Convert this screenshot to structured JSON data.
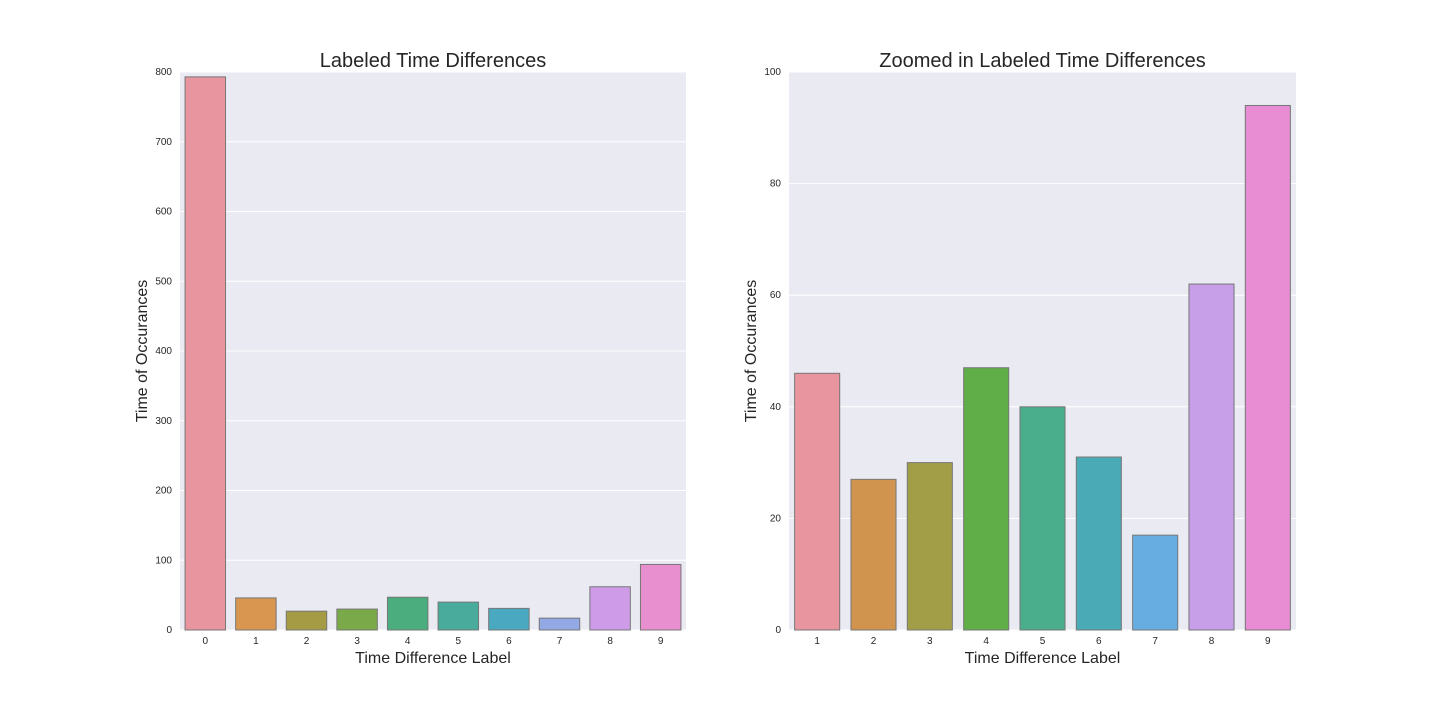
{
  "chart_data": [
    {
      "type": "bar",
      "title": "Labeled Time Differences",
      "xlabel": "Time Difference Label",
      "ylabel": "Time of Occurances",
      "categories": [
        "0",
        "1",
        "2",
        "3",
        "4",
        "5",
        "6",
        "7",
        "8",
        "9"
      ],
      "values": [
        793,
        46,
        27,
        30,
        47,
        40,
        31,
        17,
        62,
        94
      ],
      "colors": [
        "#e8959f",
        "#d89650",
        "#a69b45",
        "#7aa94a",
        "#4bac7e",
        "#48ab9b",
        "#4aa8c0",
        "#92a9e6",
        "#cd9be8",
        "#e890cf"
      ],
      "ylim": [
        0,
        800
      ],
      "yticks": [
        0,
        100,
        200,
        300,
        400,
        500,
        600,
        700,
        800
      ],
      "grid": true
    },
    {
      "type": "bar",
      "title": "Zoomed in Labeled Time Differences",
      "xlabel": "Time Difference Label",
      "ylabel": "Time of Occurances",
      "categories": [
        "1",
        "2",
        "3",
        "4",
        "5",
        "6",
        "7",
        "8",
        "9"
      ],
      "values": [
        46,
        27,
        30,
        47,
        40,
        31,
        17,
        62,
        94
      ],
      "colors": [
        "#e8959f",
        "#d0944e",
        "#a29e47",
        "#5fae48",
        "#4aad8c",
        "#4aaab6",
        "#68ade2",
        "#c69fe8",
        "#e88cd3"
      ],
      "ylim": [
        0,
        100
      ],
      "yticks": [
        0,
        20,
        40,
        60,
        80,
        100
      ],
      "grid": true
    }
  ]
}
